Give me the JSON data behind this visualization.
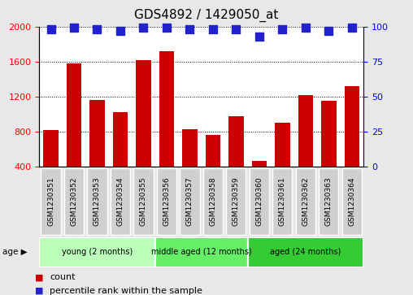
{
  "title": "GDS4892 / 1429050_at",
  "samples": [
    "GSM1230351",
    "GSM1230352",
    "GSM1230353",
    "GSM1230354",
    "GSM1230355",
    "GSM1230356",
    "GSM1230357",
    "GSM1230358",
    "GSM1230359",
    "GSM1230360",
    "GSM1230361",
    "GSM1230362",
    "GSM1230363",
    "GSM1230364"
  ],
  "counts": [
    820,
    1580,
    1160,
    1020,
    1620,
    1720,
    830,
    760,
    980,
    470,
    900,
    1220,
    1150,
    1320
  ],
  "percentiles": [
    98,
    99,
    98,
    97,
    99,
    99,
    98,
    98,
    98,
    93,
    98,
    99,
    97,
    99
  ],
  "bar_color": "#cc0000",
  "dot_color": "#2222cc",
  "ylim_left": [
    400,
    2000
  ],
  "ylim_right": [
    0,
    100
  ],
  "yticks_left": [
    400,
    800,
    1200,
    1600,
    2000
  ],
  "yticks_right": [
    0,
    25,
    50,
    75,
    100
  ],
  "groups": [
    {
      "label": "young (2 months)",
      "start": 0,
      "end": 5,
      "color": "#bbffbb"
    },
    {
      "label": "middle aged (12 months)",
      "start": 5,
      "end": 9,
      "color": "#66ee66"
    },
    {
      "label": "aged (24 months)",
      "start": 9,
      "end": 14,
      "color": "#33cc33"
    }
  ],
  "age_label": "age",
  "legend_count_label": "count",
  "legend_pct_label": "percentile rank within the sample",
  "bar_width": 0.65,
  "dot_size": 45,
  "background_color": "#e8e8e8",
  "plot_bg": "#ffffff",
  "sample_box_color": "#d0d0d0",
  "title_fontsize": 11,
  "tick_label_fontsize": 8,
  "sample_fontsize": 6.5,
  "group_fontsize": 8,
  "legend_fontsize": 8
}
